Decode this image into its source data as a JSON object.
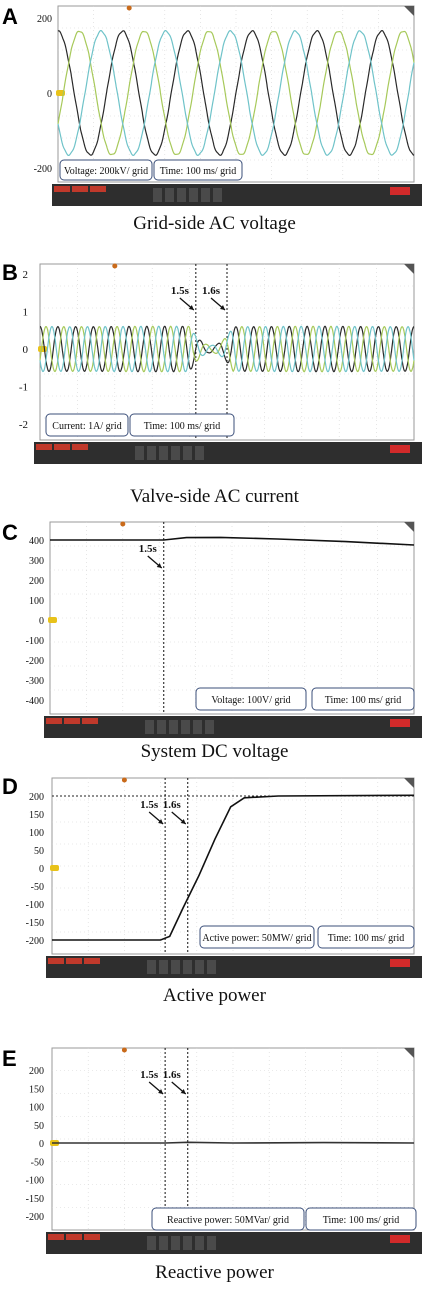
{
  "chart_data": [
    {
      "id": "A",
      "type": "line",
      "panel_label": "A",
      "caption": "Grid-side AC voltage",
      "x_range": [
        0,
        1.0
      ],
      "ylim": [
        -200,
        200
      ],
      "y_ticks": [
        200,
        0,
        -200
      ],
      "series": [
        {
          "kind": "sine",
          "amplitude": 165,
          "cycles": 5.5,
          "phase_deg": 90,
          "color": "#2a2a2a"
        },
        {
          "kind": "sine",
          "amplitude": 165,
          "cycles": 5.5,
          "phase_deg": -30,
          "color": "#a7c95a"
        },
        {
          "kind": "sine",
          "amplitude": 165,
          "cycles": 5.5,
          "phase_deg": 210,
          "color": "#6fc3c9"
        }
      ],
      "boxes": [
        "Voltage: 200kV/ grid",
        "Time: 100 ms/ grid"
      ]
    },
    {
      "id": "B",
      "type": "line",
      "panel_label": "B",
      "caption": "Valve-side AC current",
      "x_range": [
        1.0,
        2.2
      ],
      "ylim": [
        -2.5,
        2.5
      ],
      "y_ticks": [
        2,
        1,
        0,
        -1,
        -2
      ],
      "events": [
        {
          "x": 1.5,
          "label": "1.5s"
        },
        {
          "x": 1.6,
          "label": "1.6s"
        }
      ],
      "series": [
        {
          "kind": "ac_dip",
          "amplitude": 0.6,
          "dip_to": 0.1,
          "cycles": 21,
          "phase_deg": 90,
          "color": "#2a2a2a"
        },
        {
          "kind": "ac_dip",
          "amplitude": 0.6,
          "dip_to": 0.1,
          "cycles": 21,
          "phase_deg": -30,
          "color": "#a7c95a"
        },
        {
          "kind": "ac_dip",
          "amplitude": 0.6,
          "dip_to": 0.1,
          "cycles": 21,
          "phase_deg": 210,
          "color": "#6fc3c9"
        }
      ],
      "boxes": [
        "Current: 1A/ grid",
        "Time: 100 ms/ grid"
      ]
    },
    {
      "id": "C",
      "type": "line",
      "panel_label": "C",
      "caption": "System DC voltage",
      "x_range": [
        1.0,
        2.6
      ],
      "ylim": [
        -500,
        450
      ],
      "y_ticks": [
        400,
        300,
        200,
        100,
        0,
        -100,
        -200,
        -300,
        -400
      ],
      "events": [
        {
          "x": 1.5,
          "label": "1.5s"
        }
      ],
      "series": [
        {
          "kind": "points",
          "points": [
            [
              1.0,
              400
            ],
            [
              1.5,
              400
            ],
            [
              1.6,
              412
            ],
            [
              1.75,
              413
            ],
            [
              2.0,
              405
            ],
            [
              2.3,
              392
            ],
            [
              2.6,
              375
            ]
          ],
          "color": "#111111"
        }
      ],
      "boxes": [
        "Voltage: 100V/ grid",
        "Time: 100 ms/ grid"
      ]
    },
    {
      "id": "D",
      "type": "line",
      "panel_label": "D",
      "caption": "Active power",
      "x_range": [
        1.0,
        2.6
      ],
      "ylim": [
        -230,
        230
      ],
      "y_ticks": [
        200,
        150,
        100,
        50,
        0,
        -50,
        -100,
        -150,
        -200
      ],
      "events": [
        {
          "x": 1.5,
          "label": "1.5s"
        },
        {
          "x": 1.6,
          "label": "1.6s"
        }
      ],
      "reference_y": 200,
      "series": [
        {
          "kind": "points",
          "points": [
            [
              1.0,
              -200
            ],
            [
              1.48,
              -200
            ],
            [
              1.52,
              -190
            ],
            [
              1.58,
              -110
            ],
            [
              1.65,
              -20
            ],
            [
              1.72,
              80
            ],
            [
              1.79,
              170
            ],
            [
              1.85,
              195
            ],
            [
              2.0,
              200
            ],
            [
              2.6,
              202
            ]
          ],
          "color": "#111111"
        }
      ],
      "boxes": [
        "Active power: 50MW/ grid",
        "Time: 100 ms/ grid"
      ]
    },
    {
      "id": "E",
      "type": "line",
      "panel_label": "E",
      "caption": "Reactive power",
      "x_range": [
        1.0,
        2.6
      ],
      "ylim": [
        -230,
        230
      ],
      "y_ticks": [
        200,
        150,
        100,
        50,
        0,
        -50,
        -100,
        -150,
        -200
      ],
      "events": [
        {
          "x": 1.5,
          "label": "1.5s"
        },
        {
          "x": 1.6,
          "label": "1.6s"
        }
      ],
      "series": [
        {
          "kind": "points",
          "points": [
            [
              1.0,
              0
            ],
            [
              1.5,
              0
            ],
            [
              1.6,
              2
            ],
            [
              1.8,
              0
            ],
            [
              2.2,
              1
            ],
            [
              2.6,
              0
            ]
          ],
          "color": "#333333"
        }
      ],
      "boxes": [
        "Reactive power: 50MVar/ grid",
        "Time: 100 ms/ grid"
      ]
    }
  ]
}
